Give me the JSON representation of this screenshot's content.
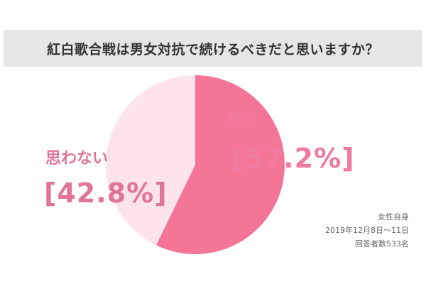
{
  "chart_data": {
    "type": "pie",
    "title": "紅白歌合戦は男女対抗で続けるべきだと思いますか？",
    "slices": [
      {
        "label": "思う",
        "value": 57.2,
        "display": "[57.2%]",
        "color": "#f57598",
        "text_color": "#f07aa0"
      },
      {
        "label": "思わない",
        "value": 42.8,
        "display": "[42.8%]",
        "color": "#fde3ec",
        "text_color": "#e2749a"
      }
    ]
  },
  "source": {
    "publisher": "女性自身",
    "period": "2019年12月8日〜11日",
    "respondents": "回答者数533名"
  },
  "colors": {
    "title_band": "#e6e6e6",
    "title_text": "#333333",
    "source_text": "#666666"
  }
}
